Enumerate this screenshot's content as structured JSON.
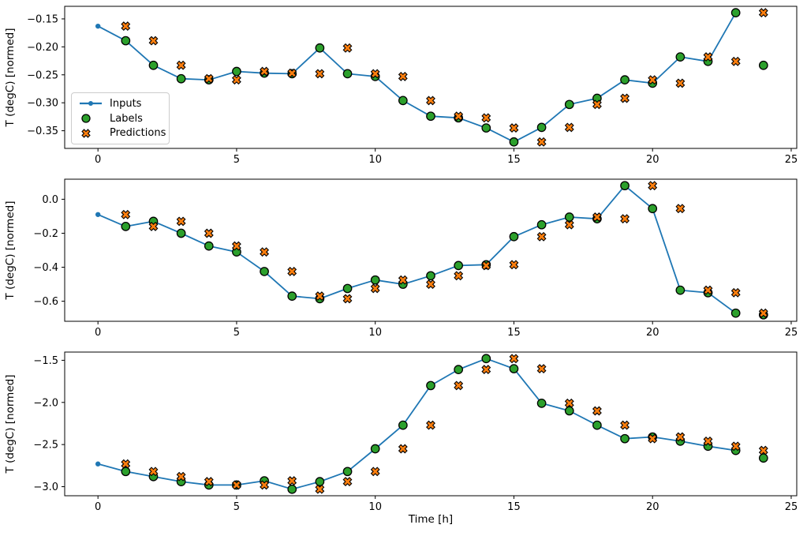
{
  "colors": {
    "inputs_line": "#1f77b4",
    "labels_marker": "#2ca02c",
    "predictions_marker": "#ff7f0e",
    "marker_edge": "#000000",
    "spine": "#000000",
    "text": "#000000",
    "legend_border": "#cccccc"
  },
  "legend": {
    "items": [
      {
        "label": "Inputs"
      },
      {
        "label": "Labels"
      },
      {
        "label": "Predictions"
      }
    ]
  },
  "chart_data": [
    {
      "type": "line",
      "title": "",
      "xlabel": "",
      "ylabel": "T (degC) [normed]",
      "grid": false,
      "legend_position": "center-left",
      "xlim": [
        -1.2,
        25.2
      ],
      "ylim": [
        -0.3816,
        -0.1275
      ],
      "xticks": {
        "values": [
          0,
          5,
          10,
          15,
          20,
          25
        ],
        "labels": [
          "0",
          "5",
          "10",
          "15",
          "20",
          "25"
        ]
      },
      "yticks": {
        "values": [
          -0.15,
          -0.2,
          -0.25,
          -0.3,
          -0.35
        ],
        "labels": [
          "−0.15",
          "−0.20",
          "−0.25",
          "−0.30",
          "−0.35"
        ]
      },
      "series": [
        {
          "name": "Inputs",
          "kind": "line",
          "marker": "dot",
          "color": "#1f77b4",
          "x": [
            0,
            1,
            2,
            3,
            4,
            5,
            6,
            7,
            8,
            9,
            10,
            11,
            12,
            13,
            14,
            15,
            16,
            17,
            18,
            19,
            20,
            21,
            22,
            23
          ],
          "y": [
            -0.163,
            -0.189,
            -0.233,
            -0.257,
            -0.259,
            -0.244,
            -0.247,
            -0.248,
            -0.202,
            -0.248,
            -0.253,
            -0.296,
            -0.324,
            -0.327,
            -0.345,
            -0.37,
            -0.344,
            -0.303,
            -0.292,
            -0.259,
            -0.265,
            -0.218,
            -0.226,
            -0.139
          ]
        },
        {
          "name": "Labels",
          "kind": "scatter",
          "marker": "circle",
          "color": "#2ca02c",
          "x": [
            1,
            2,
            3,
            4,
            5,
            6,
            7,
            8,
            9,
            10,
            11,
            12,
            13,
            14,
            15,
            16,
            17,
            18,
            19,
            20,
            21,
            22,
            23,
            24
          ],
          "y": [
            -0.189,
            -0.233,
            -0.257,
            -0.259,
            -0.244,
            -0.247,
            -0.248,
            -0.202,
            -0.248,
            -0.253,
            -0.296,
            -0.324,
            -0.327,
            -0.345,
            -0.37,
            -0.344,
            -0.303,
            -0.292,
            -0.259,
            -0.265,
            -0.218,
            -0.226,
            -0.139,
            -0.233
          ]
        },
        {
          "name": "Predictions",
          "kind": "scatter",
          "marker": "X",
          "color": "#ff7f0e",
          "x": [
            1,
            2,
            3,
            4,
            5,
            6,
            7,
            8,
            9,
            10,
            11,
            12,
            13,
            14,
            15,
            16,
            17,
            18,
            19,
            20,
            21,
            22,
            23,
            24
          ],
          "y": [
            -0.163,
            -0.189,
            -0.233,
            -0.257,
            -0.259,
            -0.244,
            -0.247,
            -0.248,
            -0.202,
            -0.248,
            -0.253,
            -0.296,
            -0.324,
            -0.327,
            -0.345,
            -0.37,
            -0.344,
            -0.303,
            -0.292,
            -0.259,
            -0.265,
            -0.218,
            -0.226,
            -0.139
          ]
        }
      ]
    },
    {
      "type": "line",
      "title": "",
      "xlabel": "",
      "ylabel": "T (degC) [normed]",
      "grid": false,
      "xlim": [
        -1.2,
        25.2
      ],
      "ylim": [
        -0.718,
        0.118
      ],
      "xticks": {
        "values": [
          0,
          5,
          10,
          15,
          20,
          25
        ],
        "labels": [
          "0",
          "5",
          "10",
          "15",
          "20",
          "25"
        ]
      },
      "yticks": {
        "values": [
          0.0,
          -0.2,
          -0.4,
          -0.6
        ],
        "labels": [
          "0.0",
          "−0.2",
          "−0.4",
          "−0.6"
        ]
      },
      "series": [
        {
          "name": "Inputs",
          "kind": "line",
          "marker": "dot",
          "color": "#1f77b4",
          "x": [
            0,
            1,
            2,
            3,
            4,
            5,
            6,
            7,
            8,
            9,
            10,
            11,
            12,
            13,
            14,
            15,
            16,
            17,
            18,
            19,
            20,
            21,
            22,
            23
          ],
          "y": [
            -0.09,
            -0.16,
            -0.13,
            -0.2,
            -0.275,
            -0.31,
            -0.425,
            -0.57,
            -0.585,
            -0.525,
            -0.475,
            -0.5,
            -0.45,
            -0.39,
            -0.385,
            -0.22,
            -0.15,
            -0.105,
            -0.115,
            0.08,
            -0.055,
            -0.535,
            -0.55,
            -0.67
          ]
        },
        {
          "name": "Labels",
          "kind": "scatter",
          "marker": "circle",
          "color": "#2ca02c",
          "x": [
            1,
            2,
            3,
            4,
            5,
            6,
            7,
            8,
            9,
            10,
            11,
            12,
            13,
            14,
            15,
            16,
            17,
            18,
            19,
            20,
            21,
            22,
            23,
            24
          ],
          "y": [
            -0.16,
            -0.13,
            -0.2,
            -0.275,
            -0.31,
            -0.425,
            -0.57,
            -0.585,
            -0.525,
            -0.475,
            -0.5,
            -0.45,
            -0.39,
            -0.385,
            -0.22,
            -0.15,
            -0.105,
            -0.115,
            0.08,
            -0.055,
            -0.535,
            -0.55,
            -0.67,
            -0.68
          ]
        },
        {
          "name": "Predictions",
          "kind": "scatter",
          "marker": "X",
          "color": "#ff7f0e",
          "x": [
            1,
            2,
            3,
            4,
            5,
            6,
            7,
            8,
            9,
            10,
            11,
            12,
            13,
            14,
            15,
            16,
            17,
            18,
            19,
            20,
            21,
            22,
            23,
            24
          ],
          "y": [
            -0.09,
            -0.16,
            -0.13,
            -0.2,
            -0.275,
            -0.31,
            -0.425,
            -0.57,
            -0.585,
            -0.525,
            -0.475,
            -0.5,
            -0.45,
            -0.39,
            -0.385,
            -0.22,
            -0.15,
            -0.105,
            -0.115,
            0.08,
            -0.055,
            -0.535,
            -0.55,
            -0.67
          ]
        }
      ]
    },
    {
      "type": "line",
      "title": "",
      "xlabel": "Time [h]",
      "ylabel": "T (degC) [normed]",
      "grid": false,
      "xlim": [
        -1.2,
        25.2
      ],
      "ylim": [
        -3.1075,
        -1.4025
      ],
      "xticks": {
        "values": [
          0,
          5,
          10,
          15,
          20,
          25
        ],
        "labels": [
          "0",
          "5",
          "10",
          "15",
          "20",
          "25"
        ]
      },
      "yticks": {
        "values": [
          -1.5,
          -2.0,
          -2.5,
          -3.0
        ],
        "labels": [
          "−1.5",
          "−2.0",
          "−2.5",
          "−3.0"
        ]
      },
      "series": [
        {
          "name": "Inputs",
          "kind": "line",
          "marker": "dot",
          "color": "#1f77b4",
          "x": [
            0,
            1,
            2,
            3,
            4,
            5,
            6,
            7,
            8,
            9,
            10,
            11,
            12,
            13,
            14,
            15,
            16,
            17,
            18,
            19,
            20,
            21,
            22,
            23
          ],
          "y": [
            -2.73,
            -2.82,
            -2.88,
            -2.94,
            -2.98,
            -2.98,
            -2.93,
            -3.03,
            -2.94,
            -2.82,
            -2.55,
            -2.27,
            -1.8,
            -1.61,
            -1.48,
            -1.6,
            -2.01,
            -2.1,
            -2.27,
            -2.43,
            -2.41,
            -2.46,
            -2.52,
            -2.57
          ]
        },
        {
          "name": "Labels",
          "kind": "scatter",
          "marker": "circle",
          "color": "#2ca02c",
          "x": [
            1,
            2,
            3,
            4,
            5,
            6,
            7,
            8,
            9,
            10,
            11,
            12,
            13,
            14,
            15,
            16,
            17,
            18,
            19,
            20,
            21,
            22,
            23,
            24
          ],
          "y": [
            -2.82,
            -2.88,
            -2.94,
            -2.98,
            -2.98,
            -2.93,
            -3.03,
            -2.94,
            -2.82,
            -2.55,
            -2.27,
            -1.8,
            -1.61,
            -1.48,
            -1.6,
            -2.01,
            -2.1,
            -2.27,
            -2.43,
            -2.41,
            -2.46,
            -2.52,
            -2.57,
            -2.66
          ]
        },
        {
          "name": "Predictions",
          "kind": "scatter",
          "marker": "X",
          "color": "#ff7f0e",
          "x": [
            1,
            2,
            3,
            4,
            5,
            6,
            7,
            8,
            9,
            10,
            11,
            12,
            13,
            14,
            15,
            16,
            17,
            18,
            19,
            20,
            21,
            22,
            23,
            24
          ],
          "y": [
            -2.73,
            -2.82,
            -2.88,
            -2.94,
            -2.98,
            -2.98,
            -2.93,
            -3.03,
            -2.94,
            -2.82,
            -2.55,
            -2.27,
            -1.8,
            -1.61,
            -1.48,
            -1.6,
            -2.01,
            -2.1,
            -2.27,
            -2.43,
            -2.41,
            -2.46,
            -2.52,
            -2.57
          ]
        }
      ]
    }
  ]
}
